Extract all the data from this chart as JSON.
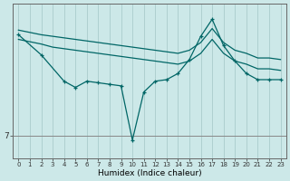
{
  "xlabel": "Humidex (Indice chaleur)",
  "bg_color": "#cce8e8",
  "grid_color": "#aacccc",
  "line_color": "#006666",
  "xlim": [
    -0.5,
    23.5
  ],
  "ylim": [
    5.5,
    15.5
  ],
  "xticks": [
    0,
    1,
    2,
    3,
    4,
    5,
    6,
    7,
    8,
    9,
    10,
    11,
    12,
    13,
    14,
    15,
    16,
    17,
    18,
    19,
    20,
    21,
    22,
    23
  ],
  "yticks": [
    7
  ],
  "series": [
    {
      "x": [
        0,
        2,
        3,
        4,
        5,
        6,
        7,
        8,
        9,
        10,
        11,
        12,
        13,
        14,
        15,
        16,
        17,
        18,
        19,
        20,
        21,
        22,
        23
      ],
      "y": [
        13.8,
        13.5,
        13.4,
        13.3,
        13.2,
        13.1,
        13.0,
        12.9,
        12.8,
        12.7,
        12.6,
        12.5,
        12.4,
        12.3,
        12.5,
        13.0,
        13.9,
        13.0,
        12.5,
        12.3,
        12.0,
        12.0,
        11.9
      ],
      "marker": false
    },
    {
      "x": [
        0,
        2,
        3,
        4,
        5,
        6,
        7,
        8,
        9,
        10,
        11,
        12,
        13,
        14,
        15,
        16,
        17,
        18,
        19,
        20,
        21,
        22,
        23
      ],
      "y": [
        13.2,
        12.9,
        12.7,
        12.6,
        12.5,
        12.4,
        12.3,
        12.2,
        12.1,
        12.0,
        11.9,
        11.8,
        11.7,
        11.6,
        11.8,
        12.3,
        13.2,
        12.3,
        11.8,
        11.6,
        11.3,
        11.3,
        11.2
      ],
      "marker": false
    },
    {
      "x": [
        0,
        2,
        4,
        5,
        6,
        7,
        8,
        9,
        10,
        11,
        12,
        13,
        14,
        15,
        16,
        17,
        18,
        19,
        20,
        21,
        22,
        23
      ],
      "y": [
        13.5,
        12.2,
        10.5,
        10.1,
        10.5,
        10.4,
        10.3,
        10.2,
        6.7,
        9.8,
        10.5,
        10.6,
        11.0,
        11.9,
        13.4,
        14.5,
        12.8,
        11.8,
        11.0,
        10.6,
        10.6,
        10.6
      ],
      "marker": true
    }
  ]
}
